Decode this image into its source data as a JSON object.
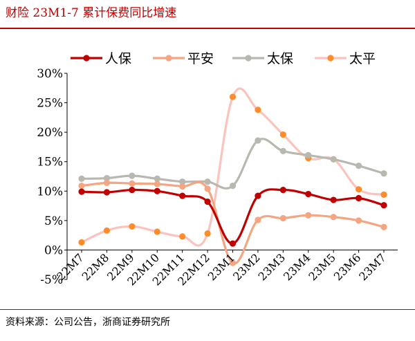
{
  "title": "财险 23M1-7 累计保费同比增速",
  "source": "资料来源：公司公告，浙商证券研究所",
  "chart_data": {
    "type": "line",
    "title": "财险 23M1-7 累计保费同比增速",
    "xlabel": "",
    "ylabel": "",
    "categories": [
      "22M7",
      "22M8",
      "22M9",
      "22M10",
      "22M11",
      "22M12",
      "23M1",
      "23M2",
      "23M3",
      "23M4",
      "23M5",
      "23M6",
      "23M7"
    ],
    "ylim": [
      -5,
      30
    ],
    "yticks": [
      "-5%",
      "0%",
      "5%",
      "10%",
      "15%",
      "20%",
      "25%",
      "30%"
    ],
    "ytick_values": [
      -5,
      0,
      5,
      10,
      15,
      20,
      25,
      30
    ],
    "grid": false,
    "legend_position": "top",
    "series": [
      {
        "name": "人保",
        "color": "#c00000",
        "values": [
          9.9,
          9.8,
          10.2,
          10.0,
          9.2,
          8.2,
          1.1,
          9.2,
          10.2,
          9.5,
          8.5,
          8.8,
          7.6
        ]
      },
      {
        "name": "平安",
        "color": "#f4a582",
        "values": [
          10.9,
          11.4,
          11.3,
          11.2,
          10.8,
          10.4,
          -2.2,
          5.1,
          5.4,
          5.9,
          5.6,
          5.0,
          3.9
        ]
      },
      {
        "name": "太保",
        "color": "#b8b8b0",
        "values": [
          12.1,
          12.2,
          12.6,
          12.1,
          11.6,
          11.6,
          10.9,
          18.6,
          16.8,
          16.1,
          15.4,
          14.3,
          13.0
        ]
      },
      {
        "name": "太平",
        "color": "#fbc3bc",
        "markerColor": "#ff8c2a",
        "values": [
          1.3,
          3.3,
          4.0,
          3.1,
          2.3,
          2.8,
          26.0,
          23.8,
          19.6,
          15.6,
          15.4,
          10.3,
          9.4
        ]
      }
    ]
  }
}
